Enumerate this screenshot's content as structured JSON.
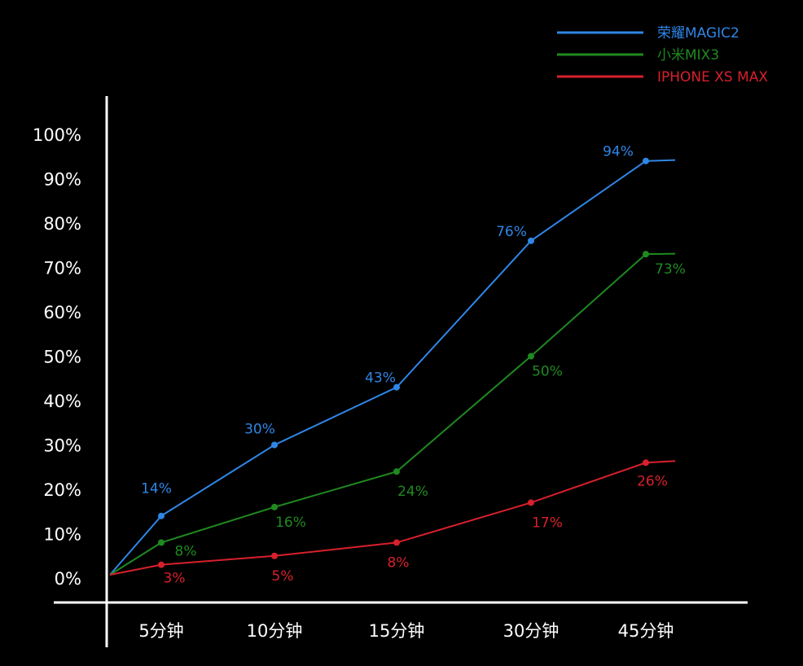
{
  "chart_data": {
    "type": "line",
    "categories": [
      "5分钟",
      "10分钟",
      "15分钟",
      "30分钟",
      "45分钟"
    ],
    "y_ticks": [
      "0%",
      "10%",
      "20%",
      "30%",
      "40%",
      "50%",
      "60%",
      "70%",
      "80%",
      "90%",
      "100%"
    ],
    "ylim": [
      0,
      100
    ],
    "grid": false,
    "legend_position": "top-right",
    "series": [
      {
        "name": "荣耀MAGIC2",
        "color": "#2f86e6",
        "values": [
          14,
          30,
          43,
          76,
          94
        ],
        "labels": [
          "14%",
          "30%",
          "43%",
          "76%",
          "94%"
        ]
      },
      {
        "name": "小米MIX3",
        "color": "#1f8a1f",
        "values": [
          8,
          16,
          24,
          50,
          73
        ],
        "labels": [
          "8%",
          "16%",
          "24%",
          "50%",
          "73%"
        ]
      },
      {
        "name": "IPHONE XS MAX",
        "color": "#d8202c",
        "values": [
          3,
          5,
          8,
          17,
          26
        ],
        "labels": [
          "3%",
          "5%",
          "8%",
          "17%",
          "26%"
        ]
      }
    ]
  }
}
